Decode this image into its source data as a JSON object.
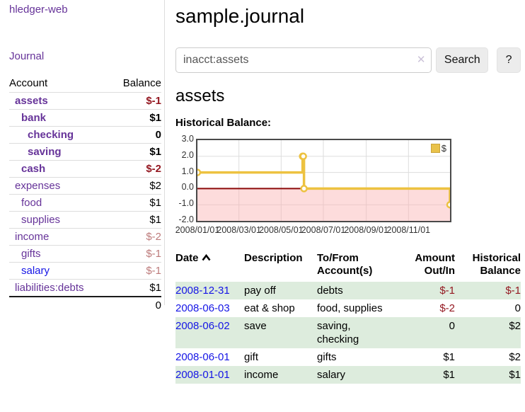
{
  "colors": {
    "link_purple": "#663399",
    "link_blue": "#1515e6",
    "negative": "#941821",
    "negative_muted": "#bd7b7b",
    "row_green": "#ddecdd",
    "series_yellow": "#edc240",
    "negative_region_pink": "#fbdcdc",
    "zero_line": "#8c0a0a"
  },
  "sidebar": {
    "brand": "hledger-web",
    "journal_label": "Journal",
    "accounts": {
      "headers": {
        "account": "Account",
        "balance": "Balance"
      },
      "rows": [
        {
          "name": "assets",
          "level": 1,
          "bold": true,
          "link_color": "purple",
          "balance": "$-1",
          "balance_style": "neg"
        },
        {
          "name": "bank",
          "level": 2,
          "bold": true,
          "link_color": "purple",
          "balance": "$1",
          "balance_style": "default"
        },
        {
          "name": "checking",
          "level": 3,
          "bold": true,
          "link_color": "purple",
          "balance": "0",
          "balance_style": "default"
        },
        {
          "name": "saving",
          "level": 3,
          "bold": true,
          "link_color": "purple",
          "balance": "$1",
          "balance_style": "default"
        },
        {
          "name": "cash",
          "level": 2,
          "bold": true,
          "link_color": "purple",
          "balance": "$-2",
          "balance_style": "neg"
        },
        {
          "name": "expenses",
          "level": 1,
          "bold": false,
          "link_color": "purple",
          "balance": "$2",
          "balance_style": "default"
        },
        {
          "name": "food",
          "level": 2,
          "bold": false,
          "link_color": "purple",
          "balance": "$1",
          "balance_style": "default"
        },
        {
          "name": "supplies",
          "level": 2,
          "bold": false,
          "link_color": "purple",
          "balance": "$1",
          "balance_style": "default"
        },
        {
          "name": "income",
          "level": 1,
          "bold": false,
          "link_color": "purple",
          "balance": "$-2",
          "balance_style": "negmuted"
        },
        {
          "name": "gifts",
          "level": 2,
          "bold": false,
          "link_color": "purple",
          "balance": "$-1",
          "balance_style": "negmuted"
        },
        {
          "name": "salary",
          "level": 2,
          "bold": false,
          "link_color": "blue",
          "balance": "$-1",
          "balance_style": "negmuted"
        },
        {
          "name": "liabilities:debts",
          "level": 1,
          "bold": false,
          "link_color": "purple",
          "balance": "$1",
          "balance_style": "default"
        }
      ],
      "total": "0"
    }
  },
  "main": {
    "title": "sample.journal",
    "search": {
      "value": "inacct:assets",
      "clear_icon": "✕",
      "search_label": "Search",
      "help_label": "?"
    },
    "section_title": "assets",
    "chart_title": "Historical Balance:"
  },
  "chart_data": {
    "type": "line",
    "step": true,
    "title": "Historical Balance:",
    "series": [
      {
        "name": "$",
        "color": "#edc240",
        "points": [
          [
            "2008-01-01",
            1
          ],
          [
            "2008-06-01",
            2
          ],
          [
            "2008-06-02",
            2
          ],
          [
            "2008-06-03",
            0
          ],
          [
            "2008-12-31",
            -1
          ]
        ]
      }
    ],
    "ylim": [
      -2.0,
      3.0
    ],
    "yticks": [
      3.0,
      2.0,
      1.0,
      0.0,
      -1.0,
      -2.0
    ],
    "xticks": [
      "2008/01/01",
      "2008/03/01",
      "2008/05/01",
      "2008/07/01",
      "2008/09/01",
      "2008/11/01"
    ],
    "xdomain": [
      "2008-01-01",
      "2008-12-31"
    ],
    "grid": true,
    "negative_fill": "#fbdcdc",
    "zero_line_color": "#8c0a0a",
    "legend": {
      "label": "$",
      "position": "top-right",
      "swatch_color": "#e9c24a"
    }
  },
  "table": {
    "headers": [
      "Date",
      "Description",
      "To/From Account(s)",
      "Amount Out/In",
      "Historical Balance"
    ],
    "sort_icon": "chevron-up",
    "rows": [
      {
        "date": "2008-12-31",
        "description": "pay off",
        "accounts": "debts",
        "amount": "$-1",
        "balance": "$-1"
      },
      {
        "date": "2008-06-03",
        "description": "eat & shop",
        "accounts": "food, supplies",
        "amount": "$-2",
        "balance": "0"
      },
      {
        "date": "2008-06-02",
        "description": "save",
        "accounts": "saving, checking",
        "amount": "0",
        "balance": "$2"
      },
      {
        "date": "2008-06-01",
        "description": "gift",
        "accounts": "gifts",
        "amount": "$1",
        "balance": "$2"
      },
      {
        "date": "2008-01-01",
        "description": "income",
        "accounts": "salary",
        "amount": "$1",
        "balance": "$1"
      }
    ]
  }
}
